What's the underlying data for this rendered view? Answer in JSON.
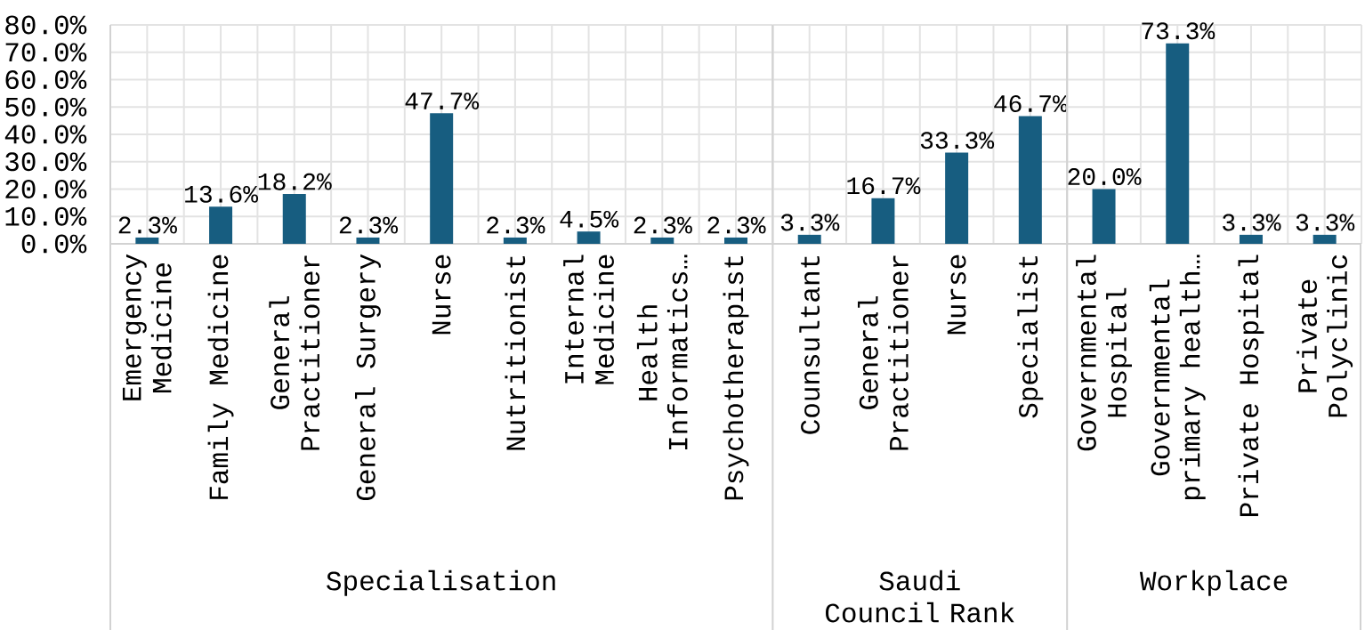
{
  "chart_data": [
    {
      "type": "bar",
      "xlabel": "Specialisation",
      "categories": [
        "Emergency Medicine",
        "Family Medicine",
        "General Practitioner",
        "General Surgery",
        "Nurse",
        "Nutritionist",
        "Internal Medicine",
        "Health Informatics…",
        "Psychotherapist"
      ],
      "values": [
        2.3,
        13.6,
        18.2,
        2.3,
        47.7,
        2.3,
        4.5,
        2.3,
        2.3
      ],
      "value_labels": [
        "2.3%",
        "13.6%",
        "18.2%",
        "2.3%",
        "47.7%",
        "2.3%",
        "4.5%",
        "2.3%",
        "2.3%"
      ],
      "color": "#175d80",
      "ylim": [
        0,
        80
      ],
      "yticks": [
        {
          "value": 0,
          "label": "0.0%"
        },
        {
          "value": 10,
          "label": "10.0%"
        },
        {
          "value": 20,
          "label": "20.0%"
        },
        {
          "value": 30,
          "label": "30.0%"
        },
        {
          "value": 40,
          "label": "40.0%"
        },
        {
          "value": 50,
          "label": "50.0%"
        },
        {
          "value": 60,
          "label": "60.0%"
        },
        {
          "value": 70,
          "label": "70.0%"
        },
        {
          "value": 80,
          "label": "80.0%"
        }
      ],
      "grid": true
    },
    {
      "type": "bar",
      "xlabel": "Saudi Council Rank",
      "categories": [
        "Counsultant",
        "General Practitioner",
        "Nurse",
        "Specialist"
      ],
      "values": [
        3.3,
        16.7,
        33.3,
        46.7
      ],
      "value_labels": [
        "3.3%",
        "16.7%",
        "33.3%",
        "46.7%"
      ],
      "color": "#175d80",
      "ylim": [
        0,
        80
      ],
      "grid": true,
      "tick_labels": "x"
    },
    {
      "type": "bar",
      "xlabel": "Workplace",
      "categories": [
        "Governmental Hospital",
        "Governmental primary health…",
        "Private Hospital",
        "Private Polyclinic"
      ],
      "values": [
        20.0,
        73.3,
        3.3,
        3.3
      ],
      "value_labels": [
        "20.0%",
        "73.3%",
        "3.3%",
        "3.3%"
      ],
      "color": "#175d80",
      "ylim": [
        0,
        80
      ],
      "grid": true,
      "tick_labels": "x"
    }
  ]
}
